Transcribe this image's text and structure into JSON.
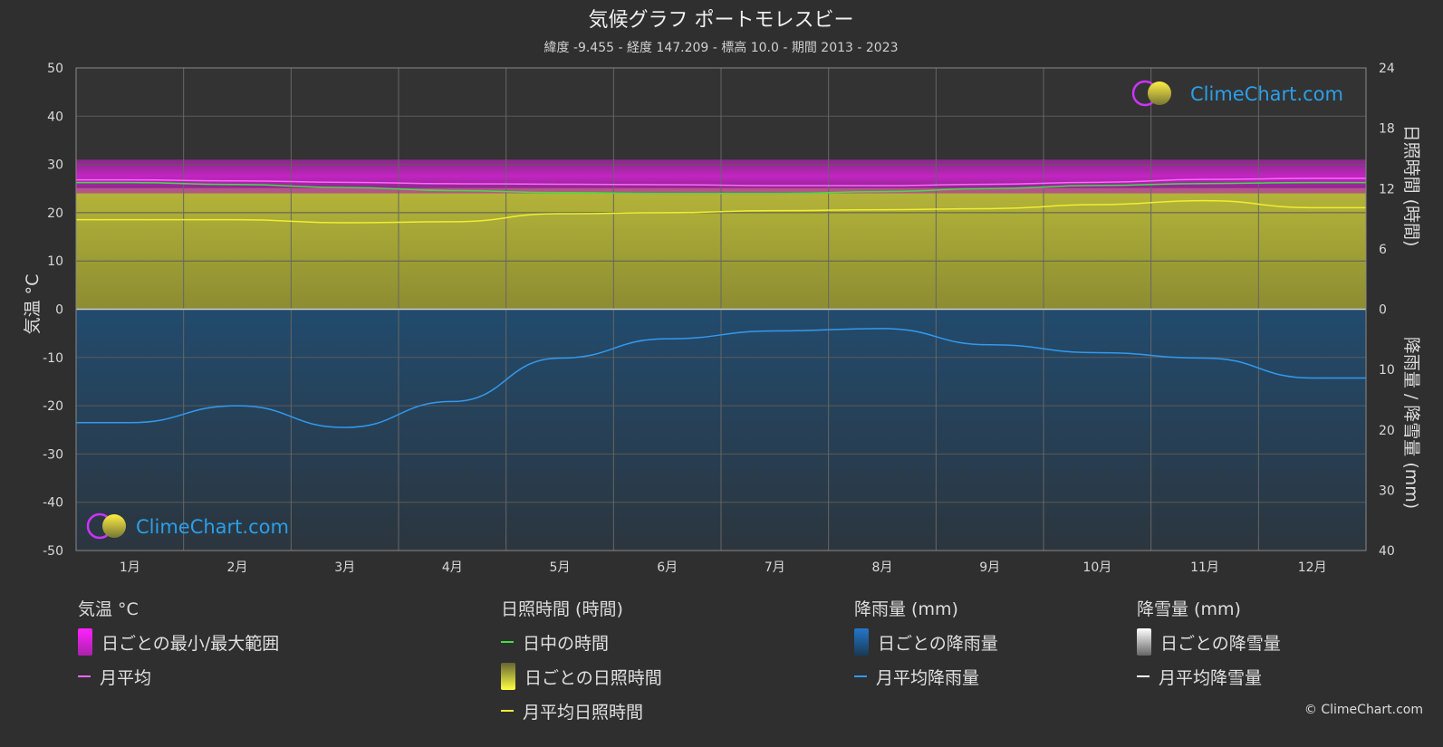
{
  "header": {
    "title": "気候グラフ ポートモレスビー",
    "subtitle": "緯度 -9.455 - 経度 147.209 - 標高 10.0 - 期間 2013 - 2023"
  },
  "logo_text": "ClimeChart.com",
  "copyright": "© ClimeChart.com",
  "chart_data": {
    "type": "area",
    "months": [
      "1月",
      "2月",
      "3月",
      "4月",
      "5月",
      "6月",
      "7月",
      "8月",
      "9月",
      "10月",
      "11月",
      "12月"
    ],
    "left_axis": {
      "label": "気温 °C",
      "range": [
        -50,
        50
      ],
      "ticks": [
        50,
        40,
        30,
        20,
        10,
        0,
        -10,
        -20,
        -30,
        -40,
        -50
      ]
    },
    "right_axis_top": {
      "label": "日照時間 (時間)",
      "range": [
        0,
        24
      ],
      "ticks": [
        24,
        18,
        12,
        6,
        0
      ]
    },
    "right_axis_bottom": {
      "label": "降雨量 / 降雪量 (mm)",
      "range": [
        0,
        40
      ],
      "ticks": [
        0,
        10,
        20,
        30,
        40
      ]
    },
    "series": [
      {
        "name": "月平均",
        "unit": "°C",
        "color": "#ff66ff",
        "values": [
          26.8,
          26.6,
          26.3,
          26.0,
          25.9,
          25.8,
          25.6,
          25.6,
          25.9,
          26.3,
          26.9,
          27.1
        ]
      },
      {
        "name": "日中の時間",
        "unit": "時間",
        "color": "#44dd44",
        "values": [
          12.6,
          12.4,
          12.1,
          11.8,
          11.6,
          11.5,
          11.5,
          11.7,
          12.0,
          12.3,
          12.5,
          12.6
        ]
      },
      {
        "name": "月平均日照時間",
        "unit": "時間",
        "color": "#eeee33",
        "values": [
          8.9,
          8.9,
          8.6,
          8.7,
          9.5,
          9.6,
          9.8,
          9.9,
          10.0,
          10.4,
          10.8,
          10.1
        ]
      },
      {
        "name": "月平均降雨量",
        "unit": "mm",
        "color": "#3399ee",
        "values": [
          18.8,
          16.0,
          19.6,
          15.3,
          8.1,
          4.9,
          3.6,
          3.2,
          5.9,
          7.2,
          8.1,
          11.4
        ]
      },
      {
        "name": "月平均降雪量",
        "unit": "mm",
        "color": "#ffffff",
        "values": [
          0,
          0,
          0,
          0,
          0,
          0,
          0,
          0,
          0,
          0,
          0,
          0
        ]
      }
    ],
    "temp_daily_range": {
      "min": 24,
      "max": 31
    }
  },
  "legend": {
    "groups": [
      {
        "title": "気温 °C",
        "items": [
          {
            "label": "日ごとの最小/最大範囲",
            "kind": "box",
            "color_top": "#ff22ff",
            "color_bottom": "#aa22aa"
          },
          {
            "label": "月平均",
            "kind": "line",
            "color": "#ff66ff"
          }
        ]
      },
      {
        "title": "日照時間 (時間)",
        "items": [
          {
            "label": "日中の時間",
            "kind": "line",
            "color": "#44dd44"
          },
          {
            "label": "日ごとの日照時間",
            "kind": "box",
            "color_top": "#ffff44",
            "color_bottom": "#666633"
          },
          {
            "label": "月平均日照時間",
            "kind": "line",
            "color": "#eeee33"
          }
        ]
      },
      {
        "title": "降雨量 (mm)",
        "items": [
          {
            "label": "日ごとの降雨量",
            "kind": "box",
            "color_top": "#2277cc",
            "color_bottom": "#1a3a55"
          },
          {
            "label": "月平均降雨量",
            "kind": "line",
            "color": "#3399ee"
          }
        ]
      },
      {
        "title": "降雪量 (mm)",
        "items": [
          {
            "label": "日ごとの降雪量",
            "kind": "box",
            "color_top": "#ffffff",
            "color_bottom": "#666666"
          },
          {
            "label": "月平均降雪量",
            "kind": "line",
            "color": "#ffffff"
          }
        ]
      }
    ]
  }
}
